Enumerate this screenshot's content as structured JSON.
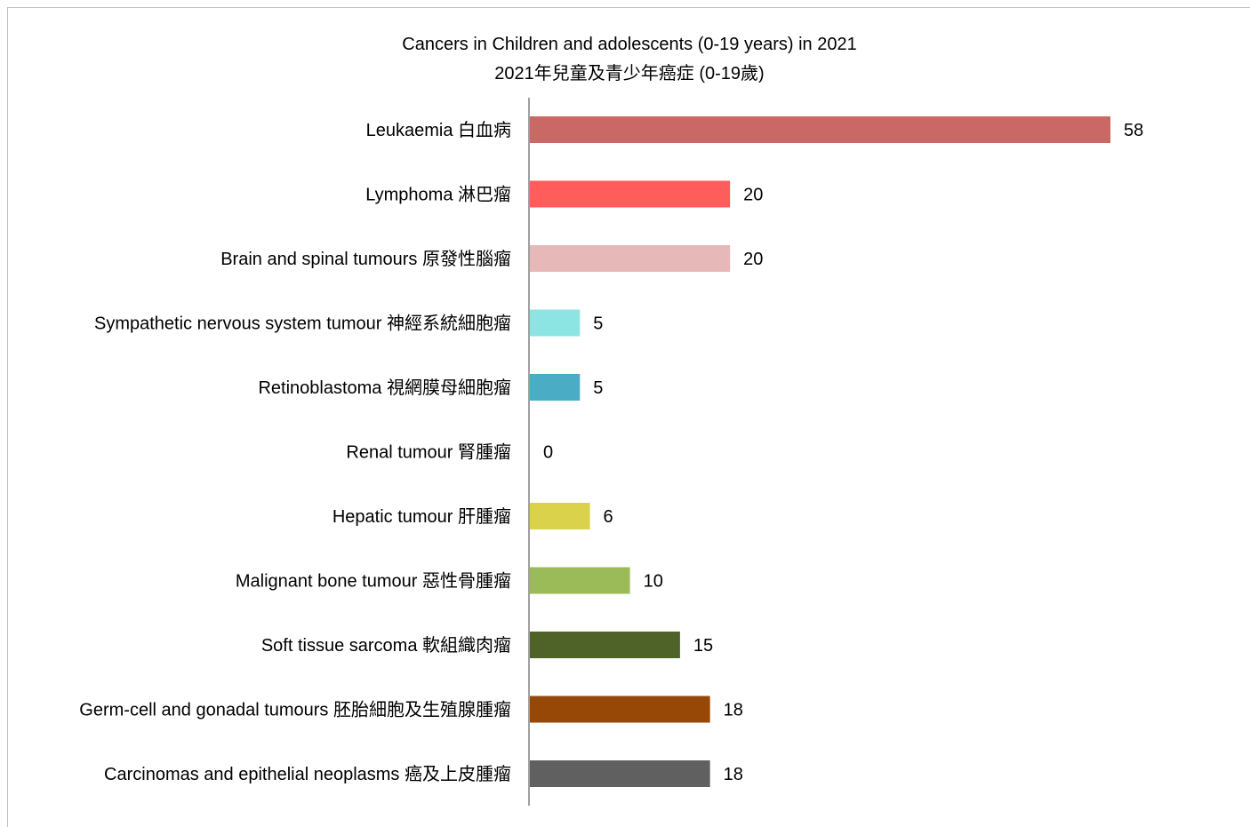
{
  "chart_data": {
    "type": "bar",
    "orientation": "horizontal",
    "title": "Cancers in Children and adolescents (0-19 years) in 2021",
    "subtitle": "2021年兒童及青少年癌症 (0-19歲)",
    "categories": [
      "Leukaemia 白血病",
      "Lymphoma 淋巴瘤",
      "Brain and spinal tumours 原發性腦瘤",
      "Sympathetic nervous system tumour 神經系統細胞瘤",
      "Retinoblastoma 視網膜母細胞瘤",
      "Renal tumour 腎腫瘤",
      "Hepatic tumour 肝腫瘤",
      "Malignant bone tumour 惡性骨腫瘤",
      "Soft tissue sarcoma 軟組織肉瘤",
      "Germ-cell and gonadal tumours 胚胎細胞及生殖腺腫瘤",
      "Carcinomas and epithelial neoplasms 癌及上皮腫瘤"
    ],
    "values": [
      58,
      20,
      20,
      5,
      5,
      0,
      6,
      10,
      15,
      18,
      18
    ],
    "colors": [
      "#c96865",
      "#ff5c5c",
      "#e6b8b7",
      "#8de5e3",
      "#4bacc6",
      "#7f7f7f",
      "#dad24b",
      "#9bbb59",
      "#4f6228",
      "#974706",
      "#606060"
    ],
    "xlim": [
      0,
      58
    ],
    "grid": false,
    "legend": "none",
    "data_labels": true
  }
}
